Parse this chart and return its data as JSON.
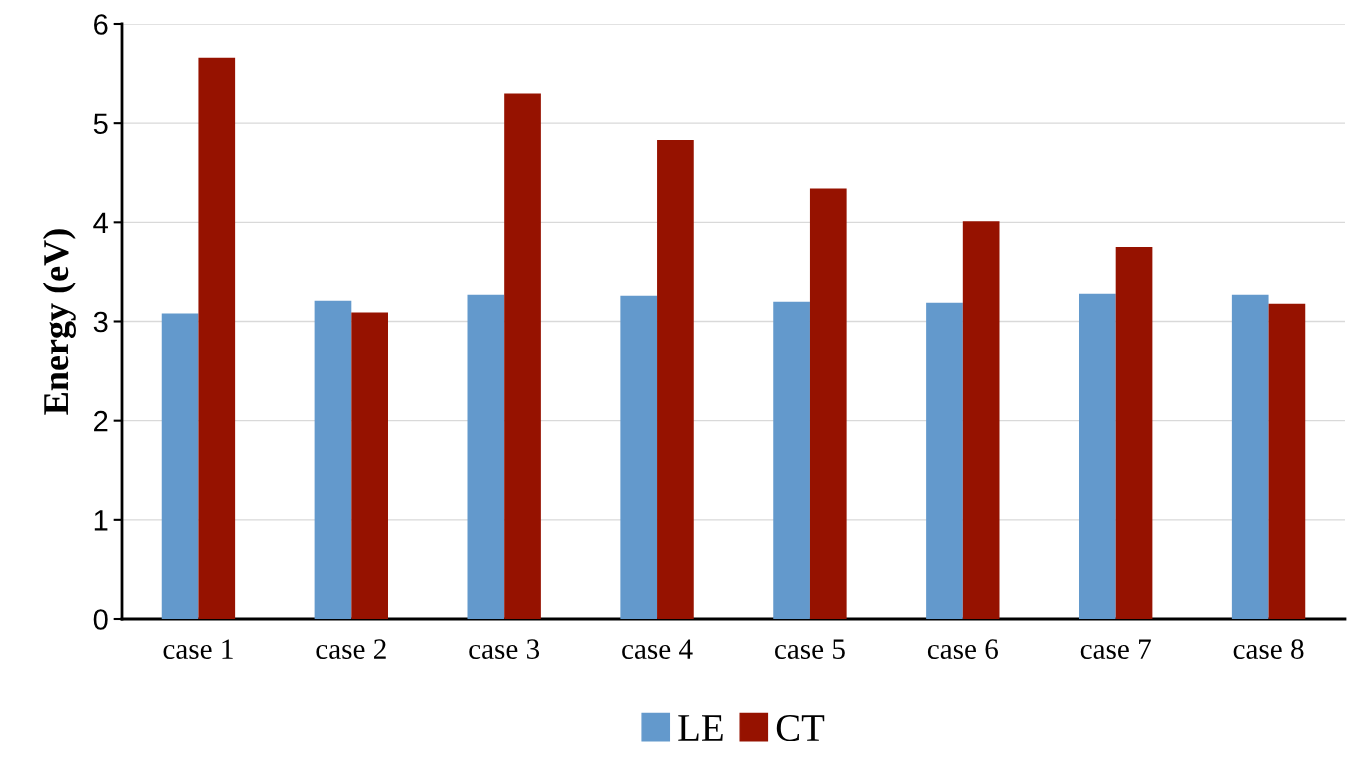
{
  "chart_data": {
    "type": "bar",
    "ylabel": "Energy (eV)",
    "categories": [
      "case 1",
      "case 2",
      "case 3",
      "case 4",
      "case 5",
      "case 6",
      "case 7",
      "case 8"
    ],
    "series": [
      {
        "name": "LE",
        "color": "#6399cc",
        "values": [
          3.08,
          3.21,
          3.27,
          3.26,
          3.2,
          3.19,
          3.28,
          3.27
        ]
      },
      {
        "name": "CT",
        "color": "#961200",
        "values": [
          5.66,
          3.09,
          5.3,
          4.83,
          4.34,
          4.01,
          3.75,
          3.18
        ]
      }
    ],
    "ylim": [
      0,
      6
    ],
    "yticks": [
      0,
      1,
      2,
      3,
      4,
      5,
      6
    ],
    "grid": "y",
    "legend": "bottom"
  }
}
